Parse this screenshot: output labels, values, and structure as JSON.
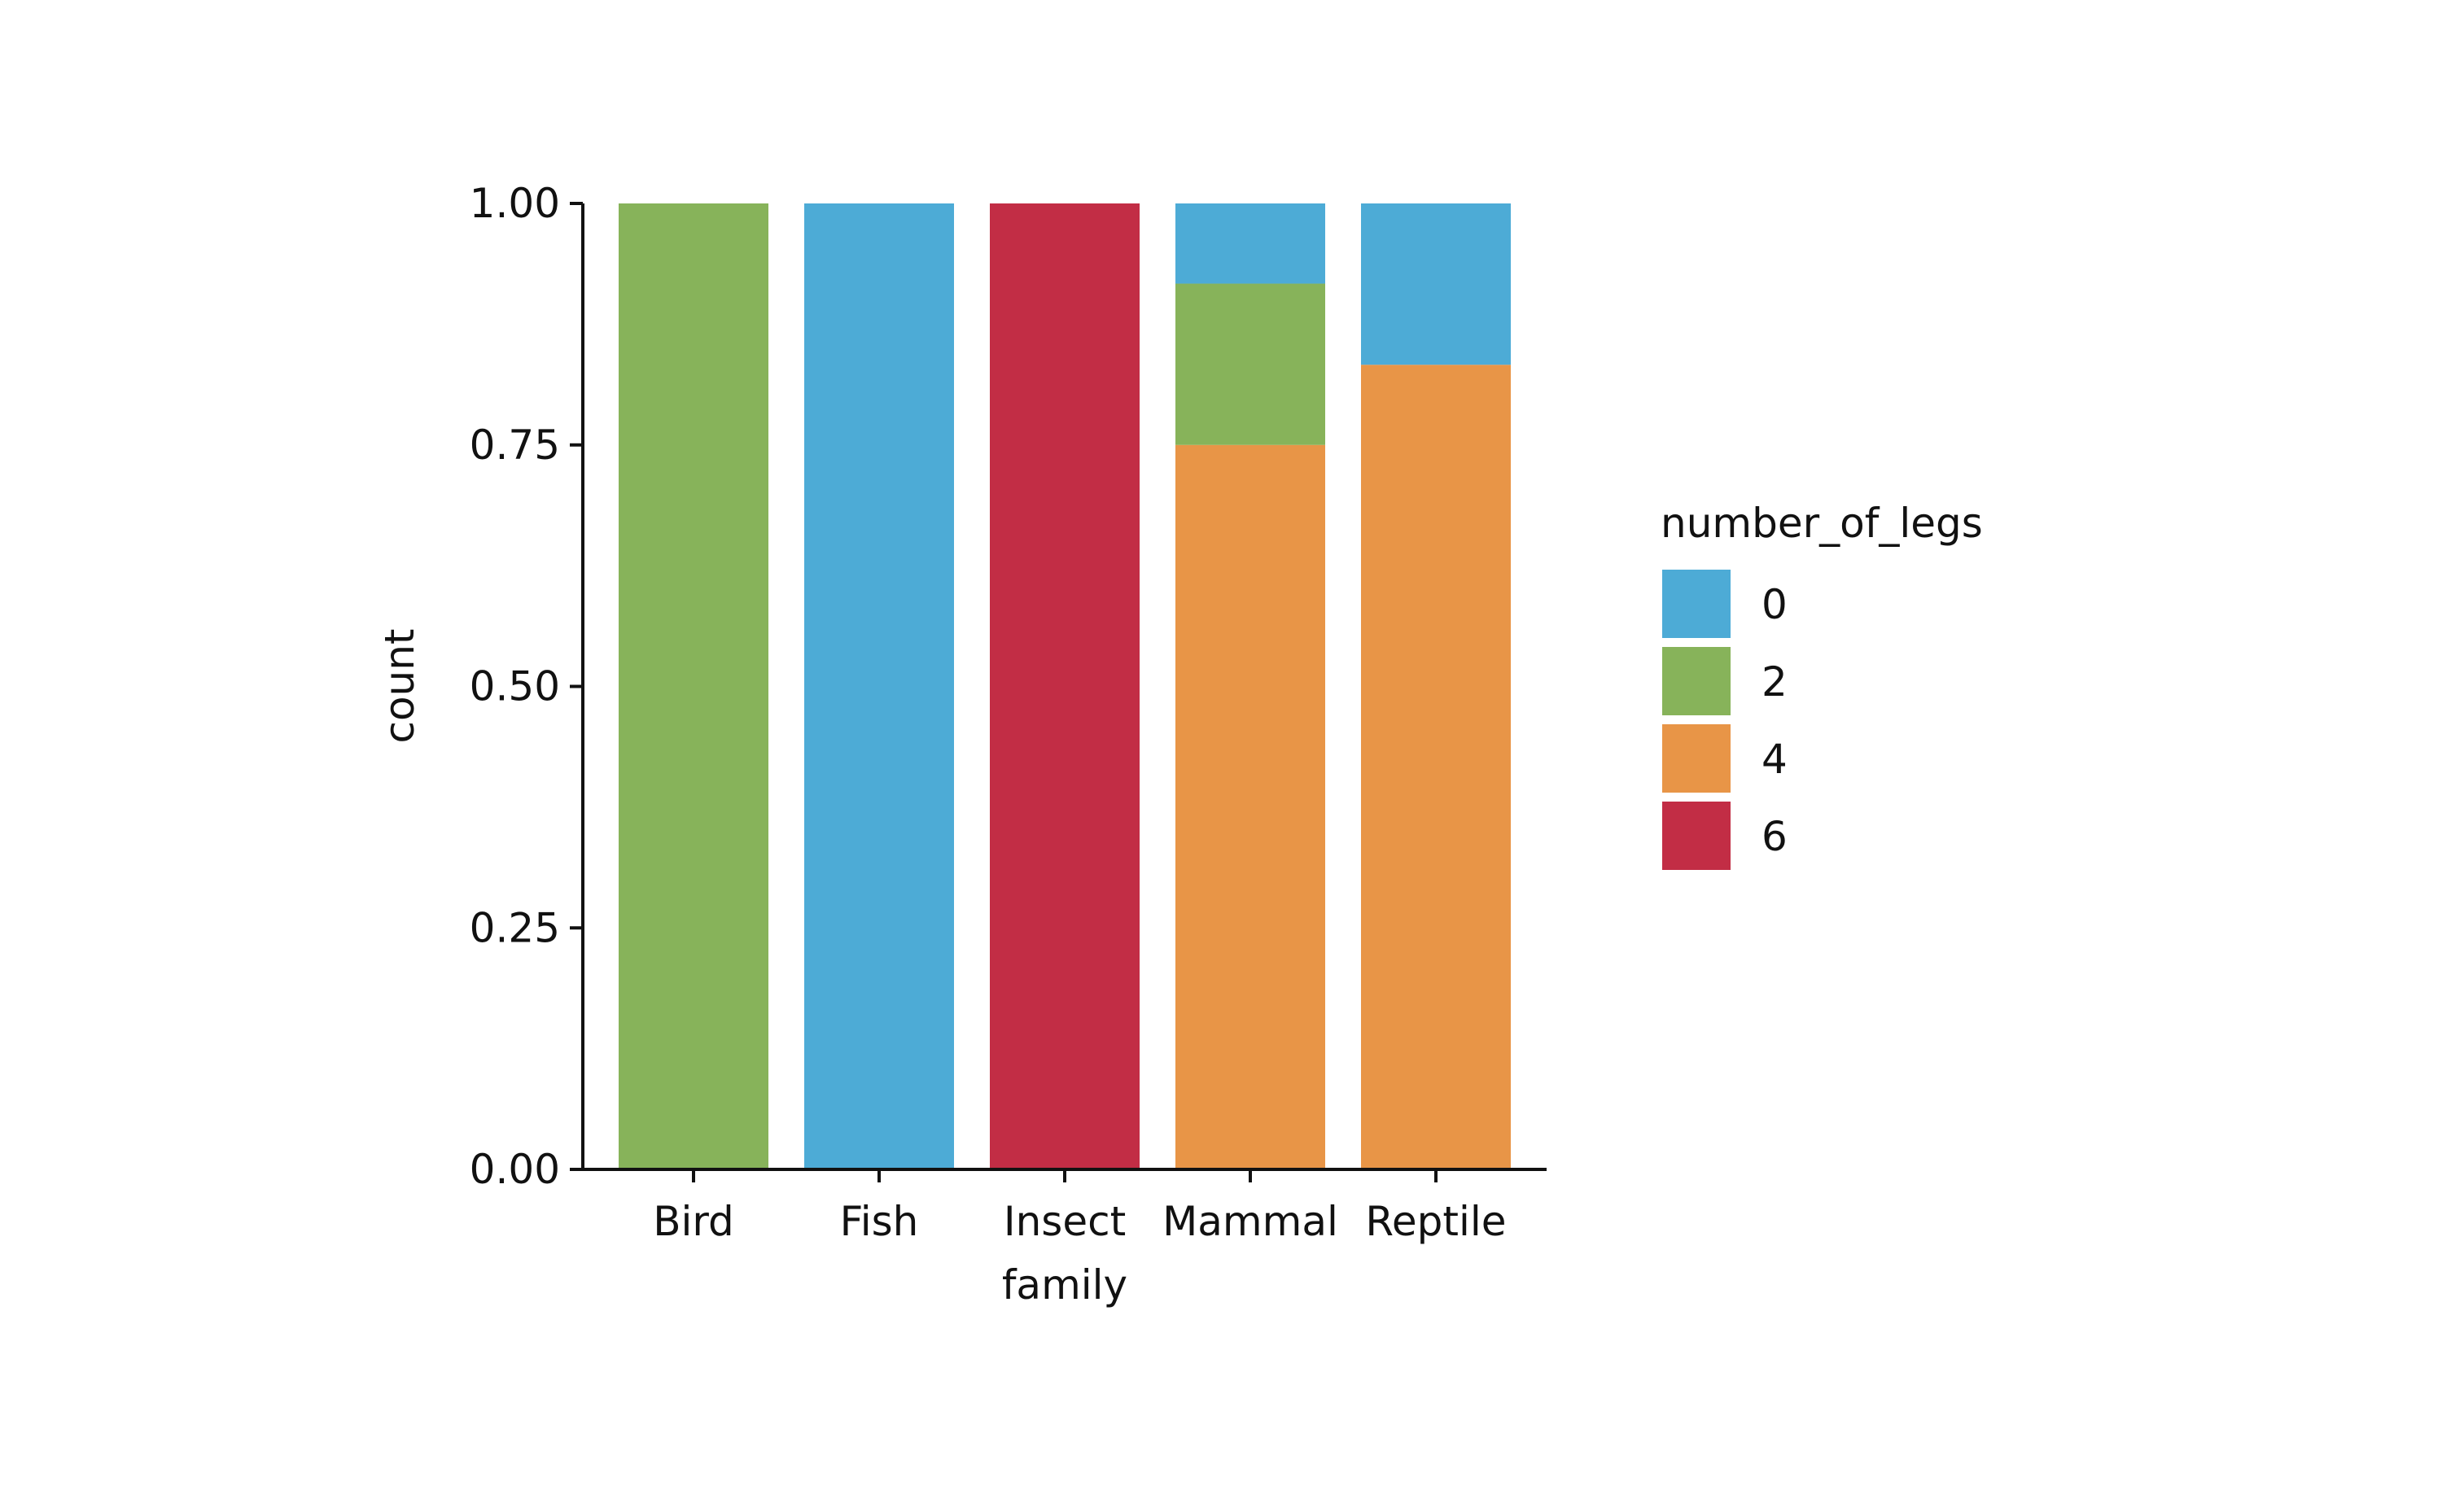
{
  "chart_data": {
    "type": "bar",
    "stacked": true,
    "xlabel": "family",
    "ylabel": "count",
    "ylim": [
      0,
      1
    ],
    "yticks": [
      "0.00",
      "0.25",
      "0.50",
      "0.75",
      "1.00"
    ],
    "ytick_values": [
      0,
      0.25,
      0.5,
      0.75,
      1.0
    ],
    "grid": false,
    "categories": [
      "Bird",
      "Fish",
      "Insect",
      "Mammal",
      "Reptile"
    ],
    "legend": {
      "title": "number_of_legs",
      "placement": "right"
    },
    "series": [
      {
        "name": "0",
        "color": "#4DABD6",
        "values": [
          0,
          1,
          0,
          0.083,
          0.167
        ]
      },
      {
        "name": "2",
        "color": "#87B35A",
        "values": [
          1,
          0,
          0,
          0.167,
          0
        ]
      },
      {
        "name": "4",
        "color": "#E89547",
        "values": [
          0,
          0,
          0,
          0.75,
          0.833
        ]
      },
      {
        "name": "6",
        "color": "#C22D45",
        "values": [
          0,
          0,
          1,
          0,
          0
        ]
      }
    ],
    "stack_order_bottom_to_top": [
      "6",
      "4",
      "2",
      "0"
    ]
  }
}
